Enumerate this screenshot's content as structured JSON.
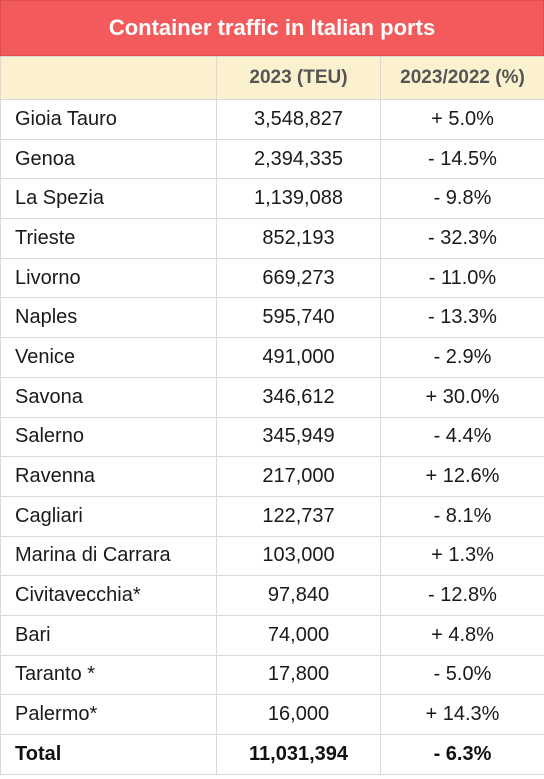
{
  "title": "Container traffic in Italian ports",
  "headers": {
    "port": "",
    "teu": "2023 (TEU)",
    "change": "2023/2022 (%)"
  },
  "rows": [
    {
      "port": "Gioia Tauro",
      "teu": "3,548,827",
      "change": "+ 5.0%"
    },
    {
      "port": "Genoa",
      "teu": "2,394,335",
      "change": "- 14.5%"
    },
    {
      "port": "La Spezia",
      "teu": "1,139,088",
      "change": "- 9.8%"
    },
    {
      "port": "Trieste",
      "teu": "852,193",
      "change": "- 32.3%"
    },
    {
      "port": "Livorno",
      "teu": "669,273",
      "change": "- 11.0%"
    },
    {
      "port": "Naples",
      "teu": "595,740",
      "change": "- 13.3%"
    },
    {
      "port": "Venice",
      "teu": "491,000",
      "change": "- 2.9%"
    },
    {
      "port": "Savona",
      "teu": "346,612",
      "change": "+ 30.0%"
    },
    {
      "port": "Salerno",
      "teu": "345,949",
      "change": "- 4.4%"
    },
    {
      "port": "Ravenna",
      "teu": "217,000",
      "change": "+ 12.6%"
    },
    {
      "port": "Cagliari",
      "teu": "122,737",
      "change": "- 8.1%"
    },
    {
      "port": "Marina di Carrara",
      "teu": "103,000",
      "change": "+ 1.3%"
    },
    {
      "port": "Civitavecchia*",
      "teu": "97,840",
      "change": "- 12.8%"
    },
    {
      "port": "Bari",
      "teu": "74,000",
      "change": "+ 4.8%"
    },
    {
      "port": "Taranto *",
      "teu": "17,800",
      "change": "- 5.0%"
    },
    {
      "port": "Palermo*",
      "teu": "16,000",
      "change": "+ 14.3%"
    }
  ],
  "total": {
    "port": "Total",
    "teu": "11,031,394",
    "change": "- 6.3%"
  },
  "colors": {
    "title_background": "#f25a5c",
    "header_background": "#fbf1cf"
  }
}
